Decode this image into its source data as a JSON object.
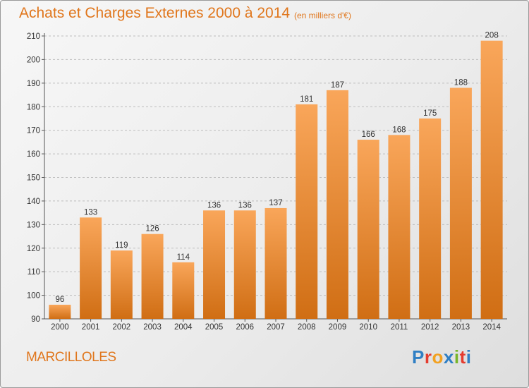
{
  "header": {
    "title": "Achats et Charges Externes 2000 à 2014",
    "subtitle": "(en milliers d'€)"
  },
  "footer": {
    "commune": "MARCILLOLES",
    "brand_letters": [
      "P",
      "r",
      "o",
      "x",
      "i",
      "t",
      "i"
    ],
    "brand_colors": [
      "#2f7fc4",
      "#e43c2f",
      "#f2a120",
      "#2f7fc4",
      "#77b52a",
      "#e43c2f",
      "#2f7fc4"
    ]
  },
  "colors": {
    "bar_top": "#f9a65a",
    "bar_bottom": "#d06e14",
    "grid": "#bdbdbd",
    "axis": "#555555"
  },
  "chart_data": {
    "type": "bar",
    "title": "Achats et Charges Externes 2000 à 2014",
    "subtitle": "(en milliers d'€)",
    "categories": [
      "2000",
      "2001",
      "2002",
      "2003",
      "2004",
      "2005",
      "2006",
      "2007",
      "2008",
      "2009",
      "2010",
      "2011",
      "2012",
      "2013",
      "2014"
    ],
    "values": [
      96,
      133,
      119,
      126,
      114,
      136,
      136,
      137,
      181,
      187,
      166,
      168,
      175,
      188,
      208
    ],
    "ylim": [
      90,
      210
    ],
    "yticks": [
      90,
      100,
      110,
      120,
      130,
      140,
      150,
      160,
      170,
      180,
      190,
      200,
      210
    ],
    "xlabel": "",
    "ylabel": "",
    "grid": "horizontal dashed"
  }
}
